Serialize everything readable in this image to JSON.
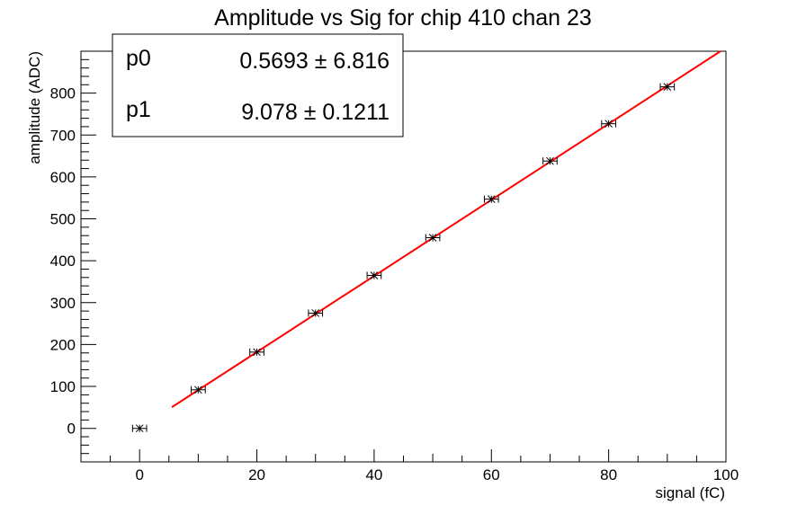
{
  "chart_data": {
    "type": "scatter",
    "title": "Amplitude vs Sig for chip 410 chan 23",
    "xlabel": "signal (fC)",
    "ylabel": "amplitude (ADC)",
    "xlim": [
      -10,
      100
    ],
    "ylim": [
      -80,
      900
    ],
    "x_ticks": [
      0,
      20,
      40,
      60,
      80,
      100
    ],
    "y_ticks": [
      0,
      100,
      200,
      300,
      400,
      500,
      600,
      700,
      800
    ],
    "grid": false,
    "points": {
      "x": [
        0,
        10,
        20,
        30,
        40,
        50,
        60,
        70,
        80,
        90
      ],
      "y": [
        0,
        92,
        182,
        275,
        365,
        455,
        547,
        638,
        727,
        815
      ],
      "x_err": 1.2
    },
    "fit": {
      "function": "p0 + p1*x",
      "x_range": [
        5.5,
        100
      ],
      "color": "#ff0000",
      "params": [
        {
          "name": "p0",
          "value": "0.5693",
          "error": "6.816"
        },
        {
          "name": "p1",
          "value": "9.078",
          "error": "0.1211"
        }
      ]
    },
    "stats_box_position": "top-left"
  },
  "stats": {
    "p0_name": "p0",
    "p0_value": "0.5693 ± 6.816",
    "p1_name": "p1",
    "p1_value": "9.078 ± 0.1211"
  }
}
